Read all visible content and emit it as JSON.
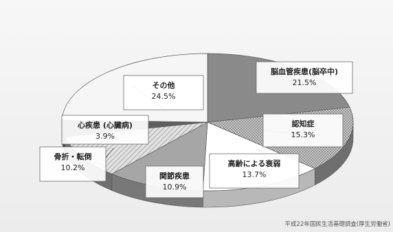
{
  "chart_data": {
    "type": "pie",
    "title": "",
    "subtitle": "",
    "slices": [
      {
        "label": "脳血管疾患(脳卒中)",
        "pct_text": "21.5%",
        "value": 21.5,
        "color": "#8a8a8a",
        "pattern": "solid"
      },
      {
        "label": "認知症",
        "pct_text": "15.3%",
        "value": 15.3,
        "color": "#bdbdbd",
        "pattern": "dots"
      },
      {
        "label": "高齢による衰弱",
        "pct_text": "13.7%",
        "value": 13.7,
        "color": "#ffffff",
        "pattern": "solid"
      },
      {
        "label": "関節疾患",
        "pct_text": "10.9%",
        "value": 10.9,
        "color": "#a6a6a6",
        "pattern": "solid"
      },
      {
        "label": "骨折・転倒",
        "pct_text": "10.2%",
        "value": 10.2,
        "color": "#d0d0d0",
        "pattern": "hatch"
      },
      {
        "label": "心疾患 (心臓病)",
        "pct_text": "3.9%",
        "value": 3.9,
        "color": "#5f5f5f",
        "pattern": "solid"
      },
      {
        "label": "その他",
        "pct_text": "24.5%",
        "value": 24.5,
        "color": "#f6f6f6",
        "pattern": "solid"
      }
    ]
  },
  "source_note": "平成22年国民生活基礎調査(厚生労働省)"
}
